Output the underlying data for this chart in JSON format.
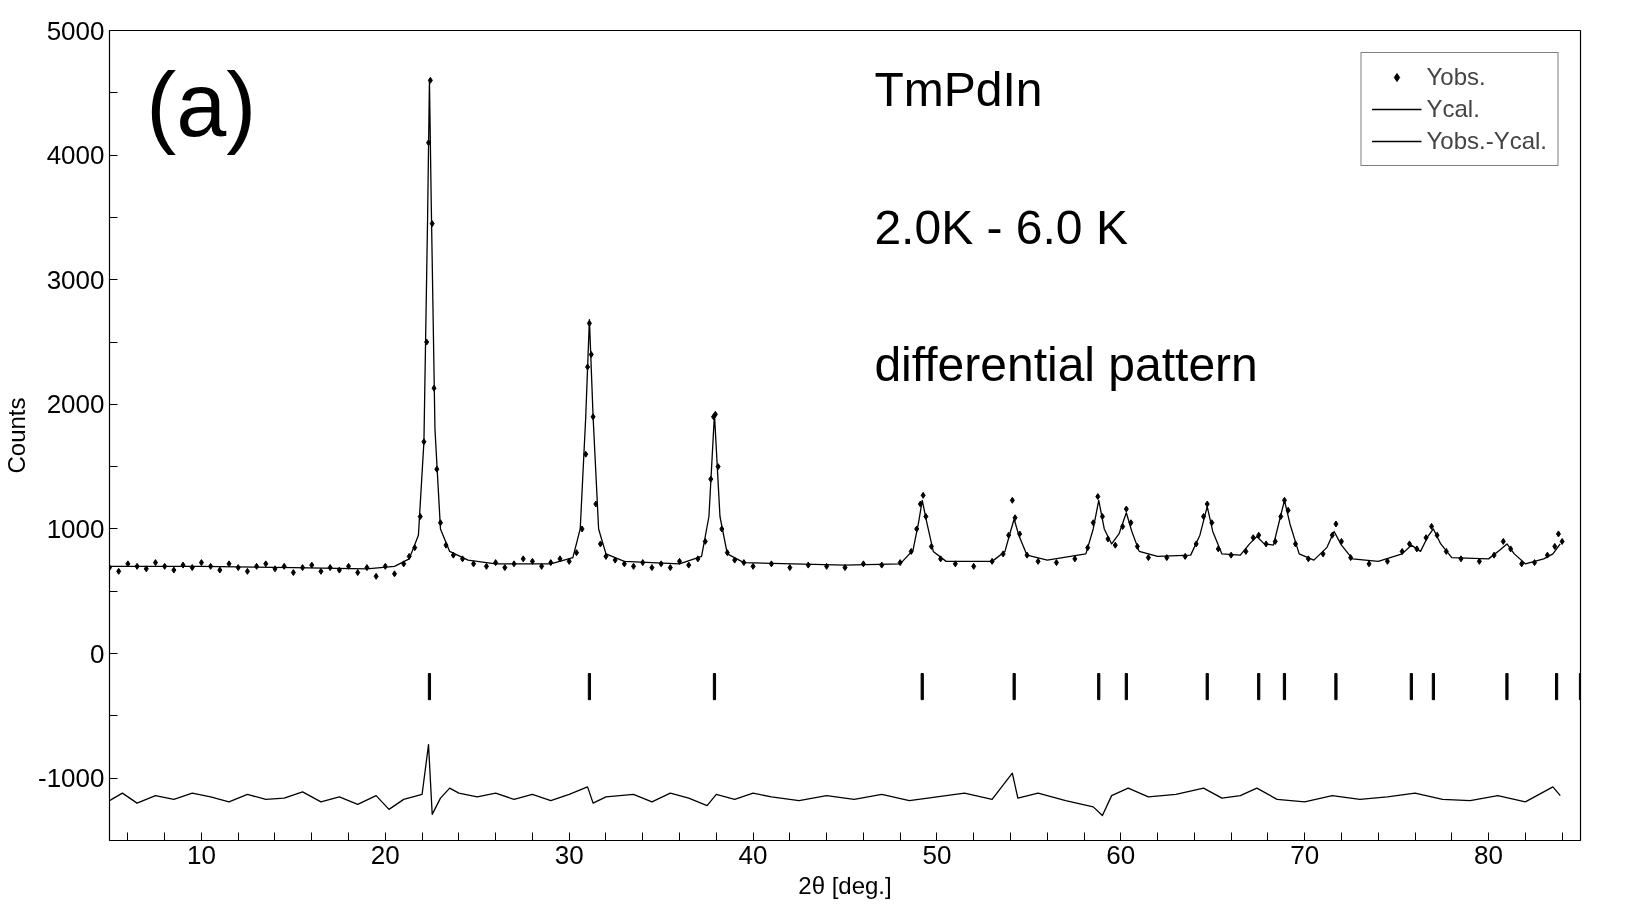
{
  "chart_data": {
    "type": "scatter",
    "xlabel": "2θ [deg.]",
    "ylabel": "Counts",
    "annotations": [
      "(a)",
      "TmPdIn",
      "2.0K - 6.0 K",
      "differential pattern"
    ],
    "xlim": [
      5,
      85
    ],
    "ylim": [
      -1500,
      5000
    ],
    "xticks": [
      {
        "value": 6,
        "label": null
      },
      {
        "value": 8,
        "label": null
      },
      10,
      {
        "value": 12,
        "label": null
      },
      {
        "value": 14,
        "label": null
      },
      {
        "value": 16,
        "label": null
      },
      {
        "value": 18,
        "label": null
      },
      20,
      {
        "value": 22,
        "label": null
      },
      {
        "value": 24,
        "label": null
      },
      {
        "value": 26,
        "label": null
      },
      {
        "value": 28,
        "label": null
      },
      30,
      {
        "value": 32,
        "label": null
      },
      {
        "value": 34,
        "label": null
      },
      {
        "value": 36,
        "label": null
      },
      {
        "value": 38,
        "label": null
      },
      40,
      {
        "value": 42,
        "label": null
      },
      {
        "value": 44,
        "label": null
      },
      {
        "value": 46,
        "label": null
      },
      {
        "value": 48,
        "label": null
      },
      50,
      {
        "value": 52,
        "label": null
      },
      {
        "value": 54,
        "label": null
      },
      {
        "value": 56,
        "label": null
      },
      {
        "value": 58,
        "label": null
      },
      60,
      {
        "value": 62,
        "label": null
      },
      {
        "value": 64,
        "label": null
      },
      {
        "value": 66,
        "label": null
      },
      {
        "value": 68,
        "label": null
      },
      70,
      {
        "value": 72,
        "label": null
      },
      {
        "value": 74,
        "label": null
      },
      {
        "value": 76,
        "label": null
      },
      {
        "value": 78,
        "label": null
      },
      80,
      {
        "value": 82,
        "label": null
      },
      {
        "value": 84,
        "label": null
      }
    ],
    "yticks": [
      -1000,
      {
        "value": -500,
        "label": null
      },
      0,
      {
        "value": 500,
        "label": null
      },
      1000,
      {
        "value": 1500,
        "label": null
      },
      2000,
      {
        "value": 2500,
        "label": null
      },
      3000,
      {
        "value": 3500,
        "label": null
      },
      4000,
      {
        "value": 4500,
        "label": null
      },
      5000
    ],
    "grid": false,
    "legend": "top right",
    "series": [
      {
        "name": "Yobs.",
        "marker": "diamond",
        "color": "#000000",
        "x": [
          5,
          5.5,
          6,
          6.5,
          7,
          7.5,
          8,
          8.5,
          9,
          9.5,
          10,
          10.5,
          11,
          11.5,
          12,
          12.5,
          13,
          13.5,
          14,
          14.5,
          15,
          15.5,
          16,
          16.5,
          17,
          17.5,
          18,
          18.5,
          19,
          19.5,
          20,
          20.5,
          21,
          21.3,
          21.6,
          21.9,
          22.1,
          22.25,
          22.35,
          22.45,
          22.55,
          22.65,
          22.8,
          23.0,
          23.3,
          23.7,
          24.2,
          24.8,
          25.5,
          26,
          26.5,
          27,
          27.5,
          28,
          28.5,
          29,
          29.5,
          30,
          30.4,
          30.7,
          30.9,
          31.0,
          31.1,
          31.2,
          31.3,
          31.45,
          31.7,
          32,
          32.5,
          33,
          33.5,
          34,
          34.5,
          35,
          35.5,
          36,
          36.5,
          37,
          37.4,
          37.7,
          37.85,
          37.95,
          38.1,
          38.3,
          38.6,
          39,
          39.5,
          40,
          41,
          42,
          43,
          44,
          45,
          46,
          47,
          48,
          48.6,
          48.9,
          49.1,
          49.25,
          49.4,
          49.7,
          50.2,
          51,
          52,
          53,
          53.6,
          53.9,
          54.1,
          54.25,
          54.5,
          54.9,
          55.5,
          56.5,
          57.5,
          58.2,
          58.5,
          58.75,
          59.0,
          59.3,
          59.7,
          60.1,
          60.3,
          60.55,
          60.9,
          61.5,
          62.5,
          63.5,
          64.1,
          64.5,
          64.7,
          64.95,
          65.3,
          66,
          66.8,
          67.2,
          67.5,
          67.9,
          68.4,
          68.7,
          68.9,
          69.1,
          69.5,
          70.2,
          71,
          71.5,
          71.7,
          72.0,
          72.5,
          73.5,
          74.5,
          75.3,
          75.7,
          76.1,
          76.6,
          76.9,
          77.2,
          77.7,
          78.5,
          79.5,
          80.3,
          80.8,
          81.2,
          81.8,
          82.5,
          83.2,
          83.6,
          83.8,
          84
        ],
        "values": [
          690,
          660,
          720,
          700,
          680,
          730,
          700,
          670,
          710,
          690,
          730,
          700,
          670,
          720,
          690,
          660,
          700,
          720,
          680,
          700,
          650,
          690,
          710,
          660,
          690,
          670,
          700,
          650,
          690,
          620,
          700,
          640,
          720,
          780,
          850,
          1100,
          1700,
          2500,
          4100,
          4600,
          3450,
          2130,
          1480,
          1050,
          870,
          790,
          760,
          720,
          700,
          730,
          690,
          720,
          760,
          740,
          700,
          730,
          760,
          740,
          810,
          1000,
          1600,
          2300,
          2650,
          2400,
          1900,
          1200,
          880,
          780,
          750,
          720,
          700,
          730,
          690,
          720,
          690,
          740,
          710,
          760,
          900,
          1400,
          1900,
          1920,
          1500,
          1000,
          810,
          750,
          730,
          700,
          720,
          690,
          710,
          700,
          690,
          720,
          710,
          730,
          820,
          1000,
          1200,
          1270,
          1100,
          860,
          760,
          720,
          700,
          740,
          800,
          950,
          1230,
          1090,
          960,
          790,
          740,
          730,
          760,
          850,
          1050,
          1260,
          1100,
          920,
          870,
          1020,
          1160,
          1050,
          860,
          770,
          770,
          780,
          880,
          1100,
          1200,
          1050,
          840,
          790,
          820,
          930,
          950,
          880,
          900,
          1100,
          1230,
          1150,
          880,
          760,
          800,
          950,
          1040,
          900,
          770,
          720,
          740,
          820,
          880,
          840,
          930,
          1020,
          950,
          820,
          760,
          740,
          790,
          900,
          840,
          720,
          730,
          790,
          860,
          960,
          900
        ]
      },
      {
        "name": "Ycal.",
        "type": "line",
        "line_style": "solid",
        "color": "#000000",
        "x": [
          5,
          10,
          15,
          19,
          20.5,
          21.3,
          21.8,
          22.1,
          22.3,
          22.4,
          22.5,
          22.7,
          23.0,
          23.5,
          24.5,
          26,
          29,
          30.2,
          30.6,
          30.9,
          31.1,
          31.3,
          31.6,
          32,
          33,
          36,
          37.2,
          37.6,
          37.9,
          38.2,
          38.6,
          39.5,
          45,
          48,
          48.7,
          49.0,
          49.2,
          49.45,
          49.8,
          50.5,
          53,
          53.7,
          54.0,
          54.2,
          54.45,
          54.9,
          56,
          58.1,
          58.5,
          58.8,
          59.1,
          59.5,
          59.9,
          60.3,
          60.6,
          61,
          62,
          63.8,
          64.3,
          64.7,
          65.0,
          65.5,
          66.5,
          67.0,
          67.4,
          67.8,
          68.3,
          68.6,
          68.9,
          69.2,
          69.7,
          70.5,
          71.2,
          71.6,
          72.0,
          72.6,
          74,
          75.3,
          75.8,
          76.3,
          76.7,
          77.0,
          77.4,
          78,
          80,
          80.6,
          81.0,
          81.4,
          82,
          83,
          83.5,
          83.9
        ],
        "values": [
          700,
          700,
          690,
          680,
          700,
          760,
          950,
          1700,
          3500,
          4600,
          3600,
          1800,
          1000,
          820,
          750,
          720,
          720,
          770,
          1000,
          1900,
          2680,
          1900,
          1000,
          800,
          740,
          720,
          780,
          1100,
          1920,
          1100,
          800,
          730,
          710,
          720,
          830,
          1050,
          1230,
          1050,
          820,
          740,
          740,
          820,
          980,
          1080,
          950,
          790,
          750,
          800,
          1000,
          1230,
          1000,
          880,
          960,
          1130,
          980,
          820,
          780,
          790,
          950,
          1180,
          980,
          800,
          790,
          880,
          940,
          880,
          870,
          1050,
          1230,
          1040,
          800,
          750,
          850,
          980,
          870,
          760,
          740,
          800,
          870,
          820,
          940,
          1000,
          880,
          770,
          760,
          830,
          880,
          800,
          720,
          760,
          800,
          880
        ]
      },
      {
        "name": "Yobs.-Ycal.",
        "type": "line",
        "line_style": "solid",
        "color": "#000000",
        "x": [
          5,
          5.7,
          6.5,
          7.5,
          8.5,
          9.5,
          10.5,
          11.5,
          12.5,
          13.5,
          14.5,
          15.5,
          16.5,
          17.5,
          18.5,
          19.5,
          20.2,
          21,
          22,
          22.35,
          22.55,
          23,
          23.5,
          24,
          25,
          26,
          27,
          28,
          29,
          30,
          31.0,
          31.3,
          32,
          33.5,
          34.5,
          35.5,
          36.5,
          37.5,
          38,
          39,
          40,
          41,
          42.5,
          44,
          45.5,
          47,
          48.5,
          50,
          51.5,
          53,
          54.1,
          54.4,
          55.5,
          57,
          58.5,
          59,
          59.5,
          60.4,
          61.5,
          63,
          64.5,
          65.5,
          66.5,
          67.4,
          68.5,
          70,
          71.5,
          73,
          74.5,
          76,
          77.5,
          79,
          80.5,
          82,
          83,
          83.5,
          83.9
        ],
        "values": [
          -1180,
          -1120,
          -1200,
          -1140,
          -1170,
          -1120,
          -1150,
          -1190,
          -1130,
          -1170,
          -1160,
          -1110,
          -1190,
          -1150,
          -1210,
          -1140,
          -1250,
          -1170,
          -1130,
          -730,
          -1290,
          -1160,
          -1080,
          -1120,
          -1150,
          -1120,
          -1170,
          -1130,
          -1180,
          -1130,
          -1070,
          -1200,
          -1150,
          -1130,
          -1190,
          -1120,
          -1160,
          -1220,
          -1130,
          -1170,
          -1120,
          -1150,
          -1180,
          -1140,
          -1170,
          -1130,
          -1180,
          -1150,
          -1120,
          -1170,
          -960,
          -1160,
          -1120,
          -1180,
          -1230,
          -1300,
          -1140,
          -1080,
          -1150,
          -1130,
          -1080,
          -1160,
          -1140,
          -1080,
          -1170,
          -1190,
          -1140,
          -1170,
          -1150,
          -1120,
          -1170,
          -1180,
          -1140,
          -1190,
          -1110,
          -1070,
          -1140
        ]
      },
      {
        "type": "bar",
        "color": "#000000",
        "x": [
          22.4,
          31.1,
          37.9,
          49.2,
          54.2,
          58.8,
          60.3,
          64.7,
          67.5,
          68.9,
          71.7,
          75.8,
          77.0,
          81.0,
          83.7,
          85.0
        ],
        "base": [
          -160,
          -160,
          -160,
          -160,
          -160,
          -160,
          -160,
          -160,
          -160,
          -160,
          -160,
          -160,
          -160,
          -160,
          -160,
          -160
        ],
        "values": [
          -210,
          -210,
          -210,
          -210,
          -210,
          -210,
          -210,
          -210,
          -210,
          -210,
          -210,
          -210,
          -210,
          -210,
          -210,
          -210
        ]
      }
    ]
  }
}
